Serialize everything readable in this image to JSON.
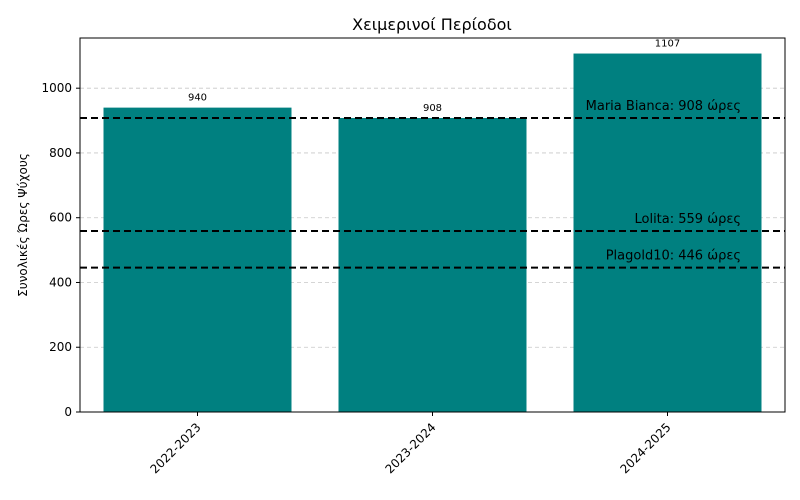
{
  "chart_data": {
    "type": "bar",
    "title": "Χειμερινοί Περίοδοι",
    "xlabel": "",
    "ylabel": "Συνολικές Ώρες Ψύχους",
    "categories": [
      "2022-2023",
      "2023-2024",
      "2024-2025"
    ],
    "values": [
      940,
      908,
      1107
    ],
    "data_labels": [
      "940",
      "908",
      "1107"
    ],
    "ylim": [
      0,
      1155
    ],
    "yticks": [
      0,
      200,
      400,
      600,
      800,
      1000
    ],
    "grid": "y-dashed",
    "bar_color": "#008080",
    "reference_lines": [
      {
        "value": 908,
        "label": "Maria Bianca: 908 ώρες"
      },
      {
        "value": 559,
        "label": "Lolita: 559 ώρες"
      },
      {
        "value": 446,
        "label": "Plagold10: 446 ώρες"
      }
    ]
  }
}
